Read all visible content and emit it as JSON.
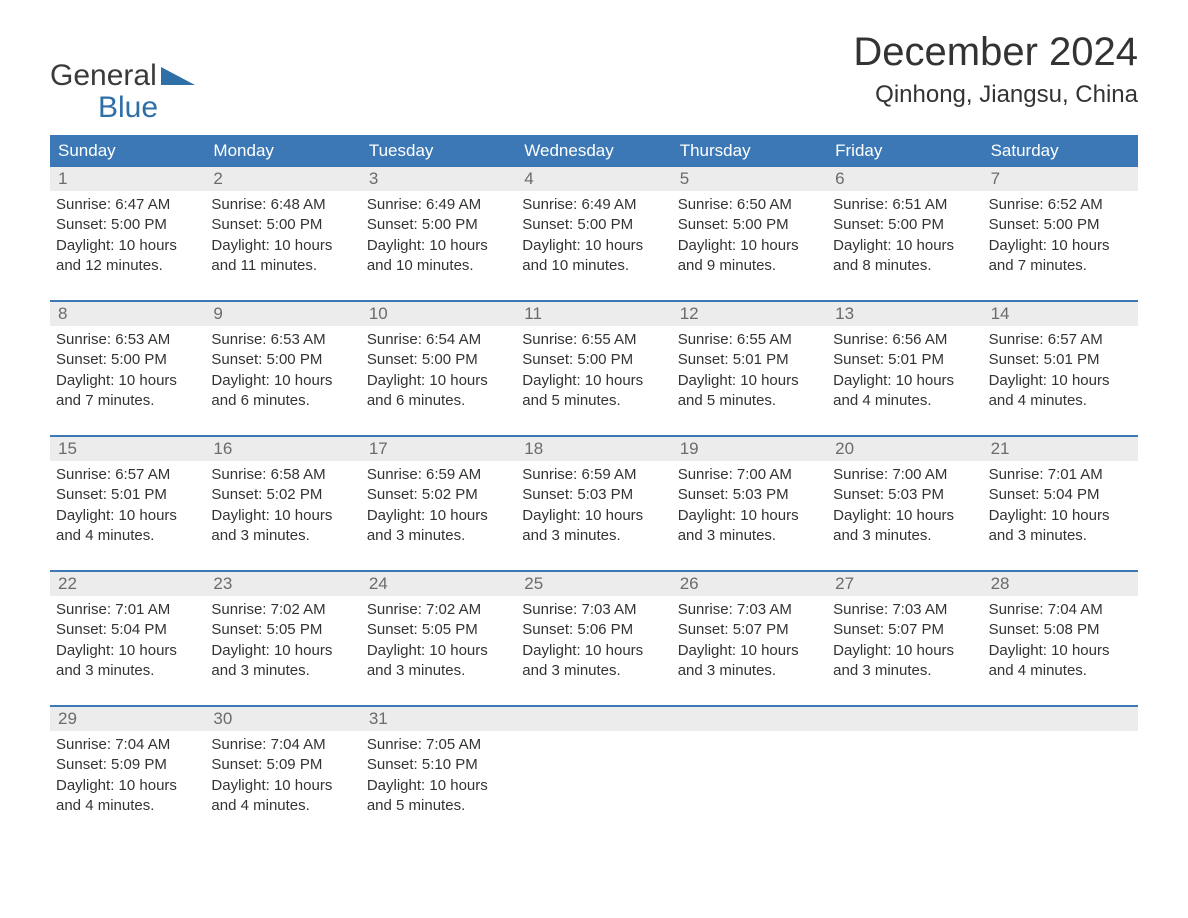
{
  "brand": {
    "word1": "General",
    "word2": "Blue"
  },
  "title": "December 2024",
  "location": "Qinhong, Jiangsu, China",
  "colors": {
    "header_bg": "#3b78b5",
    "header_text": "#ffffff",
    "daynum_bg": "#ececec",
    "daynum_text": "#6b6b6b",
    "body_text": "#333333",
    "week_border": "#3b78b5",
    "page_bg": "#ffffff",
    "brand_blue": "#2f6fa8"
  },
  "layout": {
    "columns": 7,
    "title_fontsize": 40,
    "location_fontsize": 24,
    "weekday_fontsize": 17,
    "daynum_fontsize": 17,
    "body_fontsize": 15
  },
  "weekdays": [
    "Sunday",
    "Monday",
    "Tuesday",
    "Wednesday",
    "Thursday",
    "Friday",
    "Saturday"
  ],
  "weeks": [
    [
      {
        "n": "1",
        "sr": "Sunrise: 6:47 AM",
        "ss": "Sunset: 5:00 PM",
        "d1": "Daylight: 10 hours",
        "d2": "and 12 minutes."
      },
      {
        "n": "2",
        "sr": "Sunrise: 6:48 AM",
        "ss": "Sunset: 5:00 PM",
        "d1": "Daylight: 10 hours",
        "d2": "and 11 minutes."
      },
      {
        "n": "3",
        "sr": "Sunrise: 6:49 AM",
        "ss": "Sunset: 5:00 PM",
        "d1": "Daylight: 10 hours",
        "d2": "and 10 minutes."
      },
      {
        "n": "4",
        "sr": "Sunrise: 6:49 AM",
        "ss": "Sunset: 5:00 PM",
        "d1": "Daylight: 10 hours",
        "d2": "and 10 minutes."
      },
      {
        "n": "5",
        "sr": "Sunrise: 6:50 AM",
        "ss": "Sunset: 5:00 PM",
        "d1": "Daylight: 10 hours",
        "d2": "and 9 minutes."
      },
      {
        "n": "6",
        "sr": "Sunrise: 6:51 AM",
        "ss": "Sunset: 5:00 PM",
        "d1": "Daylight: 10 hours",
        "d2": "and 8 minutes."
      },
      {
        "n": "7",
        "sr": "Sunrise: 6:52 AM",
        "ss": "Sunset: 5:00 PM",
        "d1": "Daylight: 10 hours",
        "d2": "and 7 minutes."
      }
    ],
    [
      {
        "n": "8",
        "sr": "Sunrise: 6:53 AM",
        "ss": "Sunset: 5:00 PM",
        "d1": "Daylight: 10 hours",
        "d2": "and 7 minutes."
      },
      {
        "n": "9",
        "sr": "Sunrise: 6:53 AM",
        "ss": "Sunset: 5:00 PM",
        "d1": "Daylight: 10 hours",
        "d2": "and 6 minutes."
      },
      {
        "n": "10",
        "sr": "Sunrise: 6:54 AM",
        "ss": "Sunset: 5:00 PM",
        "d1": "Daylight: 10 hours",
        "d2": "and 6 minutes."
      },
      {
        "n": "11",
        "sr": "Sunrise: 6:55 AM",
        "ss": "Sunset: 5:00 PM",
        "d1": "Daylight: 10 hours",
        "d2": "and 5 minutes."
      },
      {
        "n": "12",
        "sr": "Sunrise: 6:55 AM",
        "ss": "Sunset: 5:01 PM",
        "d1": "Daylight: 10 hours",
        "d2": "and 5 minutes."
      },
      {
        "n": "13",
        "sr": "Sunrise: 6:56 AM",
        "ss": "Sunset: 5:01 PM",
        "d1": "Daylight: 10 hours",
        "d2": "and 4 minutes."
      },
      {
        "n": "14",
        "sr": "Sunrise: 6:57 AM",
        "ss": "Sunset: 5:01 PM",
        "d1": "Daylight: 10 hours",
        "d2": "and 4 minutes."
      }
    ],
    [
      {
        "n": "15",
        "sr": "Sunrise: 6:57 AM",
        "ss": "Sunset: 5:01 PM",
        "d1": "Daylight: 10 hours",
        "d2": "and 4 minutes."
      },
      {
        "n": "16",
        "sr": "Sunrise: 6:58 AM",
        "ss": "Sunset: 5:02 PM",
        "d1": "Daylight: 10 hours",
        "d2": "and 3 minutes."
      },
      {
        "n": "17",
        "sr": "Sunrise: 6:59 AM",
        "ss": "Sunset: 5:02 PM",
        "d1": "Daylight: 10 hours",
        "d2": "and 3 minutes."
      },
      {
        "n": "18",
        "sr": "Sunrise: 6:59 AM",
        "ss": "Sunset: 5:03 PM",
        "d1": "Daylight: 10 hours",
        "d2": "and 3 minutes."
      },
      {
        "n": "19",
        "sr": "Sunrise: 7:00 AM",
        "ss": "Sunset: 5:03 PM",
        "d1": "Daylight: 10 hours",
        "d2": "and 3 minutes."
      },
      {
        "n": "20",
        "sr": "Sunrise: 7:00 AM",
        "ss": "Sunset: 5:03 PM",
        "d1": "Daylight: 10 hours",
        "d2": "and 3 minutes."
      },
      {
        "n": "21",
        "sr": "Sunrise: 7:01 AM",
        "ss": "Sunset: 5:04 PM",
        "d1": "Daylight: 10 hours",
        "d2": "and 3 minutes."
      }
    ],
    [
      {
        "n": "22",
        "sr": "Sunrise: 7:01 AM",
        "ss": "Sunset: 5:04 PM",
        "d1": "Daylight: 10 hours",
        "d2": "and 3 minutes."
      },
      {
        "n": "23",
        "sr": "Sunrise: 7:02 AM",
        "ss": "Sunset: 5:05 PM",
        "d1": "Daylight: 10 hours",
        "d2": "and 3 minutes."
      },
      {
        "n": "24",
        "sr": "Sunrise: 7:02 AM",
        "ss": "Sunset: 5:05 PM",
        "d1": "Daylight: 10 hours",
        "d2": "and 3 minutes."
      },
      {
        "n": "25",
        "sr": "Sunrise: 7:03 AM",
        "ss": "Sunset: 5:06 PM",
        "d1": "Daylight: 10 hours",
        "d2": "and 3 minutes."
      },
      {
        "n": "26",
        "sr": "Sunrise: 7:03 AM",
        "ss": "Sunset: 5:07 PM",
        "d1": "Daylight: 10 hours",
        "d2": "and 3 minutes."
      },
      {
        "n": "27",
        "sr": "Sunrise: 7:03 AM",
        "ss": "Sunset: 5:07 PM",
        "d1": "Daylight: 10 hours",
        "d2": "and 3 minutes."
      },
      {
        "n": "28",
        "sr": "Sunrise: 7:04 AM",
        "ss": "Sunset: 5:08 PM",
        "d1": "Daylight: 10 hours",
        "d2": "and 4 minutes."
      }
    ],
    [
      {
        "n": "29",
        "sr": "Sunrise: 7:04 AM",
        "ss": "Sunset: 5:09 PM",
        "d1": "Daylight: 10 hours",
        "d2": "and 4 minutes."
      },
      {
        "n": "30",
        "sr": "Sunrise: 7:04 AM",
        "ss": "Sunset: 5:09 PM",
        "d1": "Daylight: 10 hours",
        "d2": "and 4 minutes."
      },
      {
        "n": "31",
        "sr": "Sunrise: 7:05 AM",
        "ss": "Sunset: 5:10 PM",
        "d1": "Daylight: 10 hours",
        "d2": "and 5 minutes."
      },
      null,
      null,
      null,
      null
    ]
  ]
}
